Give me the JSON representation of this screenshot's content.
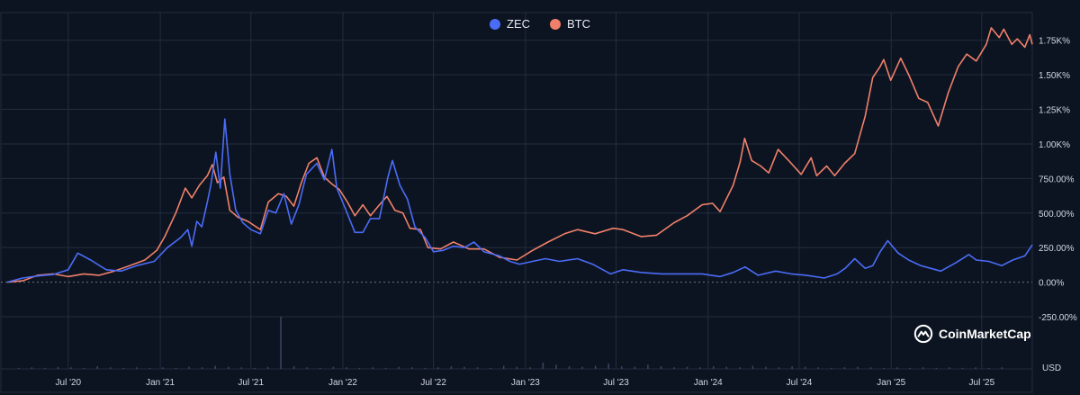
{
  "chart_data": {
    "type": "line",
    "y_unit": "%",
    "y_ticks": [
      "1.75K%",
      "1.50K%",
      "1.25K%",
      "1.00K%",
      "750.00%",
      "500.00%",
      "250.00%",
      "0.00%",
      "-250.00%"
    ],
    "y_tick_values": [
      1750,
      1500,
      1250,
      1000,
      750,
      500,
      250,
      0,
      -250
    ],
    "ylim": [
      -250,
      1950
    ],
    "x_ticks": [
      "Jul '20",
      "Jan '21",
      "Jul '21",
      "Jan '22",
      "Jul '22",
      "Jan '23",
      "Jul '23",
      "Jan '24",
      "Jul '24",
      "Jan '25",
      "Jul '25"
    ],
    "x_tick_dates": [
      "2020-07-01",
      "2021-01-01",
      "2021-07-01",
      "2022-01-01",
      "2022-07-01",
      "2023-01-01",
      "2023-07-01",
      "2024-01-01",
      "2024-07-01",
      "2025-01-01",
      "2025-07-01"
    ],
    "xlim": [
      "2020-03-01",
      "2025-10-10"
    ],
    "grid": true,
    "legend_position": "top-center",
    "series": [
      {
        "name": "ZEC",
        "color": "#4a6cf7",
        "points": [
          [
            "2020-03-01",
            0
          ],
          [
            "2020-04-01",
            30
          ],
          [
            "2020-05-01",
            45
          ],
          [
            "2020-06-01",
            55
          ],
          [
            "2020-07-01",
            90
          ],
          [
            "2020-07-20",
            210
          ],
          [
            "2020-08-15",
            160
          ],
          [
            "2020-09-15",
            90
          ],
          [
            "2020-10-15",
            80
          ],
          [
            "2020-11-15",
            120
          ],
          [
            "2020-12-20",
            150
          ],
          [
            "2021-01-15",
            250
          ],
          [
            "2021-02-10",
            320
          ],
          [
            "2021-02-25",
            380
          ],
          [
            "2021-03-05",
            260
          ],
          [
            "2021-03-15",
            440
          ],
          [
            "2021-03-25",
            400
          ],
          [
            "2021-04-05",
            580
          ],
          [
            "2021-04-12",
            700
          ],
          [
            "2021-04-22",
            940
          ],
          [
            "2021-05-01",
            680
          ],
          [
            "2021-05-10",
            1180
          ],
          [
            "2021-05-20",
            780
          ],
          [
            "2021-06-01",
            520
          ],
          [
            "2021-06-15",
            430
          ],
          [
            "2021-07-01",
            380
          ],
          [
            "2021-07-20",
            350
          ],
          [
            "2021-08-05",
            520
          ],
          [
            "2021-08-20",
            500
          ],
          [
            "2021-09-05",
            640
          ],
          [
            "2021-09-20",
            420
          ],
          [
            "2021-10-05",
            560
          ],
          [
            "2021-10-20",
            780
          ],
          [
            "2021-11-10",
            860
          ],
          [
            "2021-11-25",
            740
          ],
          [
            "2021-12-10",
            960
          ],
          [
            "2021-12-20",
            680
          ],
          [
            "2022-01-05",
            540
          ],
          [
            "2022-01-25",
            360
          ],
          [
            "2022-02-10",
            360
          ],
          [
            "2022-02-25",
            460
          ],
          [
            "2022-03-15",
            460
          ],
          [
            "2022-04-01",
            760
          ],
          [
            "2022-04-10",
            880
          ],
          [
            "2022-04-25",
            700
          ],
          [
            "2022-05-10",
            600
          ],
          [
            "2022-05-25",
            400
          ],
          [
            "2022-06-15",
            320
          ],
          [
            "2022-07-01",
            220
          ],
          [
            "2022-07-20",
            230
          ],
          [
            "2022-08-10",
            260
          ],
          [
            "2022-09-01",
            250
          ],
          [
            "2022-09-20",
            290
          ],
          [
            "2022-10-10",
            220
          ],
          [
            "2022-11-10",
            190
          ],
          [
            "2022-12-01",
            150
          ],
          [
            "2022-12-20",
            130
          ],
          [
            "2023-01-15",
            150
          ],
          [
            "2023-02-10",
            170
          ],
          [
            "2023-03-10",
            150
          ],
          [
            "2023-04-15",
            170
          ],
          [
            "2023-05-15",
            130
          ],
          [
            "2023-06-20",
            60
          ],
          [
            "2023-07-15",
            90
          ],
          [
            "2023-08-20",
            70
          ],
          [
            "2023-10-01",
            60
          ],
          [
            "2023-11-15",
            60
          ],
          [
            "2023-12-20",
            60
          ],
          [
            "2024-01-25",
            40
          ],
          [
            "2024-02-20",
            70
          ],
          [
            "2024-03-15",
            110
          ],
          [
            "2024-04-10",
            50
          ],
          [
            "2024-05-15",
            80
          ],
          [
            "2024-06-15",
            60
          ],
          [
            "2024-07-15",
            50
          ],
          [
            "2024-08-20",
            30
          ],
          [
            "2024-09-15",
            60
          ],
          [
            "2024-10-01",
            100
          ],
          [
            "2024-10-20",
            170
          ],
          [
            "2024-11-10",
            100
          ],
          [
            "2024-11-25",
            120
          ],
          [
            "2024-12-10",
            220
          ],
          [
            "2024-12-25",
            300
          ],
          [
            "2025-01-15",
            210
          ],
          [
            "2025-02-05",
            160
          ],
          [
            "2025-03-01",
            120
          ],
          [
            "2025-04-10",
            80
          ],
          [
            "2025-05-10",
            140
          ],
          [
            "2025-06-05",
            200
          ],
          [
            "2025-06-20",
            160
          ],
          [
            "2025-07-15",
            150
          ],
          [
            "2025-08-10",
            120
          ],
          [
            "2025-09-01",
            160
          ],
          [
            "2025-09-25",
            190
          ],
          [
            "2025-10-10",
            270
          ]
        ]
      },
      {
        "name": "BTC",
        "color": "#f0806a",
        "points": [
          [
            "2020-03-01",
            0
          ],
          [
            "2020-04-01",
            10
          ],
          [
            "2020-05-01",
            50
          ],
          [
            "2020-06-01",
            60
          ],
          [
            "2020-07-01",
            40
          ],
          [
            "2020-08-01",
            60
          ],
          [
            "2020-09-01",
            50
          ],
          [
            "2020-10-01",
            80
          ],
          [
            "2020-11-01",
            120
          ],
          [
            "2020-12-01",
            160
          ],
          [
            "2020-12-25",
            230
          ],
          [
            "2021-01-10",
            330
          ],
          [
            "2021-02-01",
            500
          ],
          [
            "2021-02-20",
            680
          ],
          [
            "2021-03-05",
            610
          ],
          [
            "2021-03-20",
            700
          ],
          [
            "2021-04-05",
            770
          ],
          [
            "2021-04-15",
            850
          ],
          [
            "2021-04-25",
            720
          ],
          [
            "2021-05-08",
            760
          ],
          [
            "2021-05-20",
            520
          ],
          [
            "2021-06-05",
            470
          ],
          [
            "2021-06-25",
            440
          ],
          [
            "2021-07-20",
            380
          ],
          [
            "2021-08-05",
            580
          ],
          [
            "2021-08-25",
            640
          ],
          [
            "2021-09-10",
            620
          ],
          [
            "2021-09-25",
            550
          ],
          [
            "2021-10-10",
            720
          ],
          [
            "2021-10-25",
            860
          ],
          [
            "2021-11-10",
            900
          ],
          [
            "2021-11-25",
            760
          ],
          [
            "2021-12-10",
            710
          ],
          [
            "2021-12-25",
            670
          ],
          [
            "2022-01-10",
            580
          ],
          [
            "2022-01-25",
            480
          ],
          [
            "2022-02-10",
            560
          ],
          [
            "2022-02-25",
            480
          ],
          [
            "2022-03-15",
            560
          ],
          [
            "2022-03-30",
            620
          ],
          [
            "2022-04-15",
            520
          ],
          [
            "2022-05-01",
            500
          ],
          [
            "2022-05-15",
            390
          ],
          [
            "2022-06-05",
            380
          ],
          [
            "2022-06-20",
            250
          ],
          [
            "2022-07-15",
            240
          ],
          [
            "2022-08-10",
            290
          ],
          [
            "2022-09-10",
            240
          ],
          [
            "2022-10-10",
            240
          ],
          [
            "2022-11-10",
            180
          ],
          [
            "2022-12-15",
            160
          ],
          [
            "2023-01-15",
            230
          ],
          [
            "2023-02-15",
            290
          ],
          [
            "2023-03-20",
            350
          ],
          [
            "2023-04-15",
            380
          ],
          [
            "2023-05-20",
            350
          ],
          [
            "2023-06-25",
            390
          ],
          [
            "2023-07-15",
            380
          ],
          [
            "2023-08-20",
            330
          ],
          [
            "2023-09-20",
            340
          ],
          [
            "2023-10-25",
            430
          ],
          [
            "2023-11-20",
            480
          ],
          [
            "2023-12-20",
            560
          ],
          [
            "2024-01-10",
            570
          ],
          [
            "2024-01-25",
            510
          ],
          [
            "2024-02-20",
            700
          ],
          [
            "2024-03-05",
            870
          ],
          [
            "2024-03-14",
            1040
          ],
          [
            "2024-03-28",
            880
          ],
          [
            "2024-04-15",
            840
          ],
          [
            "2024-05-01",
            790
          ],
          [
            "2024-05-20",
            960
          ],
          [
            "2024-06-10",
            880
          ],
          [
            "2024-07-05",
            780
          ],
          [
            "2024-07-25",
            900
          ],
          [
            "2024-08-05",
            770
          ],
          [
            "2024-08-25",
            840
          ],
          [
            "2024-09-10",
            770
          ],
          [
            "2024-09-30",
            860
          ],
          [
            "2024-10-20",
            930
          ],
          [
            "2024-11-10",
            1200
          ],
          [
            "2024-11-25",
            1480
          ],
          [
            "2024-12-10",
            1560
          ],
          [
            "2024-12-17",
            1610
          ],
          [
            "2024-12-31",
            1460
          ],
          [
            "2025-01-20",
            1620
          ],
          [
            "2025-02-05",
            1500
          ],
          [
            "2025-02-25",
            1330
          ],
          [
            "2025-03-15",
            1300
          ],
          [
            "2025-04-05",
            1130
          ],
          [
            "2025-04-25",
            1370
          ],
          [
            "2025-05-15",
            1560
          ],
          [
            "2025-06-01",
            1650
          ],
          [
            "2025-06-20",
            1600
          ],
          [
            "2025-07-10",
            1720
          ],
          [
            "2025-07-20",
            1840
          ],
          [
            "2025-08-05",
            1770
          ],
          [
            "2025-08-14",
            1830
          ],
          [
            "2025-08-30",
            1720
          ],
          [
            "2025-09-10",
            1760
          ],
          [
            "2025-09-25",
            1700
          ],
          [
            "2025-10-05",
            1790
          ],
          [
            "2025-10-10",
            1720
          ]
        ]
      }
    ],
    "volume_bars": [
      0.02,
      0.03,
      0.02,
      0.04,
      0.03,
      0.02,
      0.05,
      0.03,
      0.02,
      0.03,
      0.02,
      0.03,
      0.02,
      0.04,
      0.03,
      0.06,
      0.04,
      0.03,
      0.02,
      0.04,
      1.0,
      0.05,
      0.03,
      0.02,
      0.04,
      0.03,
      0.02,
      0.03,
      0.02,
      0.04,
      0.03,
      0.02,
      0.03,
      0.05,
      0.04,
      0.03,
      0.02,
      0.06,
      0.04,
      0.03,
      0.12,
      0.08,
      0.05,
      0.04,
      0.06,
      0.1,
      0.05,
      0.04,
      0.08,
      0.05,
      0.03,
      0.04,
      0.03,
      0.05,
      0.04,
      0.03,
      0.06,
      0.04,
      0.03,
      0.05,
      0.04,
      0.03,
      0.02,
      0.03,
      0.04,
      0.03,
      0.02,
      0.03,
      0.02,
      0.03,
      0.02,
      0.03,
      0.02,
      0.03,
      0.02,
      0.03
    ]
  },
  "currency_label": "USD",
  "brand_name": "CoinMarketCap",
  "colors": {
    "background": "#0d1421",
    "grid": "#222d3f",
    "zero_line": "#6b7488",
    "volume": "#3b4560"
  }
}
